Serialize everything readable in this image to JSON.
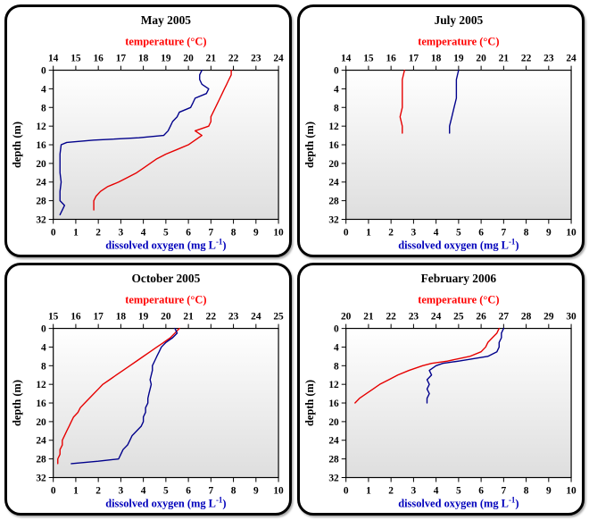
{
  "page": {
    "background": "#ffffff"
  },
  "colors": {
    "temperature_line": "#e60000",
    "temperature_label": "#ff0000",
    "oxygen_line": "#00008b",
    "oxygen_label": "#0000bb",
    "axis": "#000000",
    "plot_gradient_top": "#ffffff",
    "plot_gradient_bottom": "#dedede"
  },
  "chart_data": [
    {
      "type": "line",
      "title": "May 2005",
      "top_axis": {
        "label": "temperature (°C)",
        "min": 14,
        "max": 24,
        "tick_step": 1,
        "color": "#ff0000"
      },
      "bottom_axis": {
        "label": "dissolved oxygen (mg L⁻¹)",
        "min": 0,
        "max": 10,
        "tick_step": 1,
        "color": "#0000bb"
      },
      "left_axis": {
        "label": "depth (m)",
        "min": 0,
        "max": 32,
        "tick_step": 4
      },
      "series": [
        {
          "name": "temperature",
          "axis": "top",
          "color": "#e60000",
          "points": [
            [
              0,
              21.9
            ],
            [
              1,
              21.9
            ],
            [
              2,
              21.8
            ],
            [
              3,
              21.7
            ],
            [
              4,
              21.6
            ],
            [
              5,
              21.5
            ],
            [
              6,
              21.4
            ],
            [
              7,
              21.3
            ],
            [
              8,
              21.2
            ],
            [
              9,
              21.1
            ],
            [
              10,
              21.0
            ],
            [
              11,
              21.0
            ],
            [
              12,
              20.9
            ],
            [
              13,
              20.3
            ],
            [
              14,
              20.6
            ],
            [
              15,
              20.3
            ],
            [
              16,
              20.0
            ],
            [
              17,
              19.5
            ],
            [
              18,
              19.0
            ],
            [
              19,
              18.6
            ],
            [
              20,
              18.3
            ],
            [
              21,
              18.0
            ],
            [
              22,
              17.7
            ],
            [
              23,
              17.3
            ],
            [
              24,
              16.9
            ],
            [
              25,
              16.4
            ],
            [
              26,
              16.1
            ],
            [
              27,
              15.9
            ],
            [
              28,
              15.8
            ],
            [
              29,
              15.8
            ],
            [
              30,
              15.8
            ]
          ]
        },
        {
          "name": "dissolved oxygen",
          "axis": "bottom",
          "color": "#00008b",
          "points": [
            [
              0,
              6.6
            ],
            [
              1,
              6.5
            ],
            [
              2,
              6.5
            ],
            [
              3,
              6.6
            ],
            [
              4,
              6.9
            ],
            [
              5,
              6.8
            ],
            [
              6,
              6.3
            ],
            [
              7,
              6.2
            ],
            [
              8,
              6.1
            ],
            [
              9,
              5.6
            ],
            [
              10,
              5.5
            ],
            [
              11,
              5.3
            ],
            [
              12,
              5.2
            ],
            [
              13,
              5.1
            ],
            [
              14,
              4.9
            ],
            [
              14.5,
              3.8
            ],
            [
              15,
              1.8
            ],
            [
              15.5,
              0.6
            ],
            [
              16,
              0.35
            ],
            [
              18,
              0.3
            ],
            [
              20,
              0.3
            ],
            [
              22,
              0.3
            ],
            [
              24,
              0.35
            ],
            [
              26,
              0.3
            ],
            [
              28,
              0.3
            ],
            [
              29,
              0.5
            ],
            [
              30,
              0.4
            ],
            [
              31,
              0.3
            ]
          ]
        }
      ]
    },
    {
      "type": "line",
      "title": "July 2005",
      "top_axis": {
        "label": "temperature (°C)",
        "min": 14,
        "max": 24,
        "tick_step": 1,
        "color": "#ff0000"
      },
      "bottom_axis": {
        "label": "dissolved oxygen (mg L⁻¹)",
        "min": 0,
        "max": 10,
        "tick_step": 1,
        "color": "#0000bb"
      },
      "left_axis": {
        "label": "depth (m)",
        "min": 0,
        "max": 32,
        "tick_step": 4
      },
      "series": [
        {
          "name": "temperature",
          "axis": "top",
          "color": "#e60000",
          "points": [
            [
              0,
              16.6
            ],
            [
              2,
              16.5
            ],
            [
              4,
              16.5
            ],
            [
              6,
              16.5
            ],
            [
              8,
              16.5
            ],
            [
              10,
              16.4
            ],
            [
              12,
              16.5
            ],
            [
              13.5,
              16.5
            ]
          ]
        },
        {
          "name": "dissolved oxygen",
          "axis": "bottom",
          "color": "#00008b",
          "points": [
            [
              0,
              5.0
            ],
            [
              2,
              4.9
            ],
            [
              4,
              4.9
            ],
            [
              6,
              4.9
            ],
            [
              8,
              4.8
            ],
            [
              10,
              4.7
            ],
            [
              12,
              4.6
            ],
            [
              13.5,
              4.6
            ]
          ]
        }
      ]
    },
    {
      "type": "line",
      "title": "October 2005",
      "top_axis": {
        "label": "temperature (°C)",
        "min": 15,
        "max": 25,
        "tick_step": 1,
        "color": "#ff0000"
      },
      "bottom_axis": {
        "label": "dissolved oxygen (mg L⁻¹)",
        "min": 0,
        "max": 10,
        "tick_step": 1,
        "color": "#0000bb"
      },
      "left_axis": {
        "label": "depth (m)",
        "min": 0,
        "max": 32,
        "tick_step": 4
      },
      "series": [
        {
          "name": "temperature",
          "axis": "top",
          "color": "#e60000",
          "points": [
            [
              0,
              20.6
            ],
            [
              1,
              20.4
            ],
            [
              2,
              20.2
            ],
            [
              3,
              19.9
            ],
            [
              4,
              19.6
            ],
            [
              5,
              19.3
            ],
            [
              6,
              19.0
            ],
            [
              7,
              18.7
            ],
            [
              8,
              18.4
            ],
            [
              9,
              18.1
            ],
            [
              10,
              17.8
            ],
            [
              11,
              17.5
            ],
            [
              12,
              17.2
            ],
            [
              13,
              17.0
            ],
            [
              14,
              16.8
            ],
            [
              15,
              16.6
            ],
            [
              16,
              16.4
            ],
            [
              17,
              16.2
            ],
            [
              18,
              16.1
            ],
            [
              19,
              15.9
            ],
            [
              20,
              15.8
            ],
            [
              21,
              15.7
            ],
            [
              22,
              15.6
            ],
            [
              23,
              15.5
            ],
            [
              24,
              15.4
            ],
            [
              25,
              15.4
            ],
            [
              26,
              15.3
            ],
            [
              27,
              15.3
            ],
            [
              28,
              15.2
            ],
            [
              29,
              15.2
            ]
          ]
        },
        {
          "name": "dissolved oxygen",
          "axis": "bottom",
          "color": "#00008b",
          "points": [
            [
              0,
              5.4
            ],
            [
              1,
              5.5
            ],
            [
              2,
              5.3
            ],
            [
              3,
              5.0
            ],
            [
              4,
              4.8
            ],
            [
              5,
              4.7
            ],
            [
              6,
              4.6
            ],
            [
              7,
              4.5
            ],
            [
              8,
              4.4
            ],
            [
              9,
              4.4
            ],
            [
              10,
              4.35
            ],
            [
              11,
              4.3
            ],
            [
              12,
              4.35
            ],
            [
              13,
              4.3
            ],
            [
              14,
              4.25
            ],
            [
              15,
              4.2
            ],
            [
              16,
              4.2
            ],
            [
              17,
              4.1
            ],
            [
              18,
              4.1
            ],
            [
              19,
              4.0
            ],
            [
              20,
              4.0
            ],
            [
              21,
              3.9
            ],
            [
              22,
              3.7
            ],
            [
              23,
              3.5
            ],
            [
              24,
              3.4
            ],
            [
              25,
              3.3
            ],
            [
              26,
              3.1
            ],
            [
              27,
              3.0
            ],
            [
              28,
              2.9
            ],
            [
              28.5,
              2.0
            ],
            [
              29,
              0.8
            ]
          ]
        }
      ]
    },
    {
      "type": "line",
      "title": "February 2006",
      "top_axis": {
        "label": "temperature (°C)",
        "min": 20,
        "max": 30,
        "tick_step": 1,
        "color": "#ff0000"
      },
      "bottom_axis": {
        "label": "dissolved oxygen (mg L⁻¹)",
        "min": 0,
        "max": 10,
        "tick_step": 1,
        "color": "#0000bb"
      },
      "left_axis": {
        "label": "depth (m)",
        "min": 0,
        "max": 32,
        "tick_step": 4
      },
      "series": [
        {
          "name": "temperature",
          "axis": "top",
          "color": "#e60000",
          "points": [
            [
              0,
              26.8
            ],
            [
              1,
              26.7
            ],
            [
              2,
              26.5
            ],
            [
              3,
              26.3
            ],
            [
              4,
              26.2
            ],
            [
              5,
              26.0
            ],
            [
              6,
              25.5
            ],
            [
              7,
              24.5
            ],
            [
              7.5,
              23.8
            ],
            [
              8,
              23.4
            ],
            [
              9,
              22.8
            ],
            [
              10,
              22.3
            ],
            [
              11,
              21.9
            ],
            [
              12,
              21.5
            ],
            [
              13,
              21.2
            ],
            [
              14,
              20.9
            ],
            [
              15,
              20.6
            ],
            [
              16,
              20.4
            ]
          ]
        },
        {
          "name": "dissolved oxygen",
          "axis": "bottom",
          "color": "#00008b",
          "points": [
            [
              0,
              7.0
            ],
            [
              1,
              6.9
            ],
            [
              2,
              6.9
            ],
            [
              3,
              6.8
            ],
            [
              4,
              6.8
            ],
            [
              5,
              6.7
            ],
            [
              6,
              6.3
            ],
            [
              7,
              5.0
            ],
            [
              7.5,
              4.3
            ],
            [
              8,
              4.0
            ],
            [
              9,
              3.7
            ],
            [
              10,
              3.8
            ],
            [
              11,
              3.6
            ],
            [
              12,
              3.7
            ],
            [
              13,
              3.6
            ],
            [
              14,
              3.7
            ],
            [
              15,
              3.6
            ],
            [
              16,
              3.6
            ]
          ]
        }
      ]
    }
  ]
}
